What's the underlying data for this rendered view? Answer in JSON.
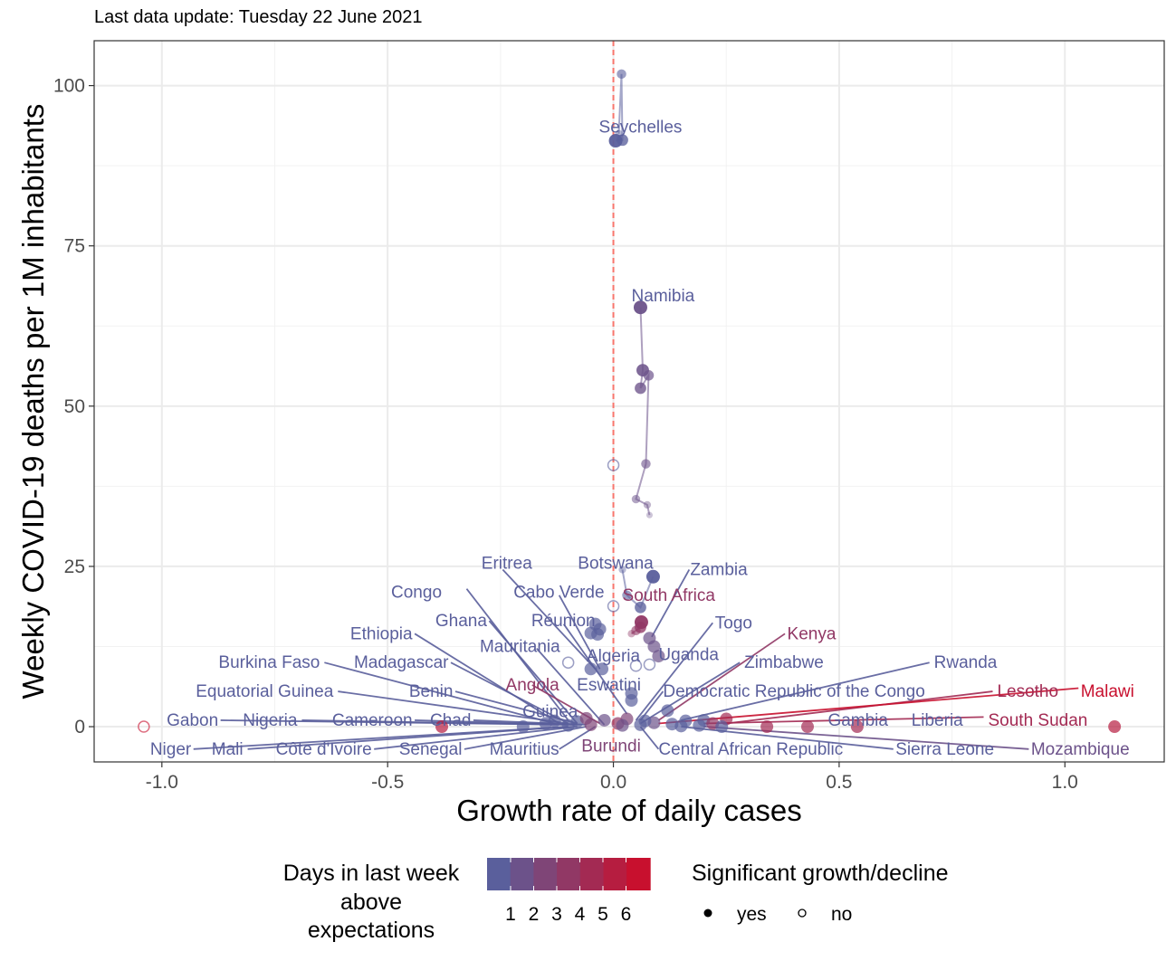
{
  "chart_data": {
    "type": "scatter",
    "subtitle": "Last data update: Tuesday 22 June 2021",
    "xlabel": "Growth rate of daily cases",
    "ylabel": "Weekly COVID-19 deaths per 1M inhabitants",
    "xlim": [
      -1.15,
      1.22
    ],
    "ylim": [
      -5.5,
      107
    ],
    "x_ticks": [
      -1.0,
      -0.5,
      0.0,
      0.5,
      1.0
    ],
    "x_tick_labels": [
      "-1.0",
      "-0.5",
      "0.0",
      "0.5",
      "1.0"
    ],
    "y_ticks": [
      0,
      25,
      50,
      75,
      100
    ],
    "y_tick_labels": [
      "0",
      "25",
      "50",
      "75",
      "100"
    ],
    "grid": true,
    "reference_line_x": 0,
    "colors": {
      "low": "#5a5f9c",
      "high": "#c8102e",
      "refline": "#f8766d",
      "grid": "#ebebeb"
    },
    "legend": {
      "position": "bottom",
      "color_title": [
        "Days in last week",
        "above",
        "expectations"
      ],
      "color_labels": [
        "1",
        "2",
        "3",
        "4",
        "5",
        "6"
      ],
      "shape_title": "Significant growth/decline",
      "shape_labels": [
        "yes",
        "no"
      ]
    },
    "trails": [
      {
        "name": "Seychelles",
        "days": 0,
        "points": [
          [
            0.012,
            92.5
          ],
          [
            0.018,
            101.8
          ],
          [
            0.02,
            91.5
          ],
          [
            0.005,
            91.4
          ]
        ]
      },
      {
        "name": "Namibia",
        "days": 1,
        "points": [
          [
            0.08,
            33
          ],
          [
            0.075,
            34.6
          ],
          [
            0.05,
            35.5
          ],
          [
            0.072,
            41
          ],
          [
            0.078,
            54.8
          ],
          [
            0.06,
            52.8
          ],
          [
            0.065,
            55.6
          ],
          [
            0.06,
            65.4
          ]
        ]
      },
      {
        "name": "Botswana",
        "days": 0,
        "points": [
          [
            0.02,
            24.5
          ],
          [
            0.03,
            20.5
          ],
          [
            0.06,
            18.6
          ],
          [
            0.088,
            23.4
          ]
        ]
      },
      {
        "name": "South Africa",
        "days": 3,
        "points": [
          [
            0.04,
            14.5
          ],
          [
            0.05,
            15
          ],
          [
            0.06,
            15.5
          ],
          [
            0.062,
            16.3
          ]
        ]
      }
    ],
    "points": [
      [
        0.0,
        40.8,
        0,
        0
      ],
      [
        0.0,
        18.8,
        0,
        0
      ],
      [
        -0.1,
        10,
        0,
        0
      ],
      [
        0.05,
        9.5,
        0,
        0
      ],
      [
        0.08,
        9.7,
        0,
        0
      ],
      [
        -0.04,
        16,
        0,
        1
      ],
      [
        -0.03,
        15.2,
        0,
        1
      ],
      [
        -0.05,
        14.6,
        0,
        1
      ],
      [
        -0.035,
        14.4,
        0,
        1
      ],
      [
        -0.05,
        9,
        0,
        1
      ],
      [
        -0.025,
        9,
        0,
        1
      ],
      [
        0.08,
        13.8,
        1,
        1
      ],
      [
        0.09,
        12.5,
        1,
        1
      ],
      [
        0.1,
        11,
        1,
        1
      ],
      [
        0.04,
        5.2,
        0,
        1
      ],
      [
        0.04,
        4.1,
        0,
        1
      ],
      [
        0.12,
        2.5,
        0,
        1
      ],
      [
        0.2,
        1,
        0,
        1
      ],
      [
        0.25,
        1.2,
        4,
        1
      ],
      [
        0.34,
        0,
        4,
        1
      ],
      [
        0.43,
        0,
        4,
        1
      ],
      [
        0.54,
        0,
        4,
        1
      ],
      [
        1.11,
        0,
        5,
        1
      ],
      [
        -0.38,
        0,
        5,
        1
      ],
      [
        -1.04,
        0,
        6,
        0
      ],
      [
        -0.2,
        0,
        0,
        1
      ],
      [
        -0.15,
        0.5,
        0,
        1
      ],
      [
        -0.1,
        0.2,
        0,
        1
      ],
      [
        -0.08,
        0.8,
        0,
        1
      ],
      [
        -0.05,
        0.3,
        2,
        1
      ],
      [
        -0.02,
        1,
        1,
        1
      ],
      [
        0.01,
        0.5,
        3,
        1
      ],
      [
        0.03,
        1.2,
        2,
        1
      ],
      [
        0.06,
        0.3,
        0,
        1
      ],
      [
        0.09,
        0.6,
        1,
        1
      ],
      [
        0.13,
        0.4,
        0,
        1
      ],
      [
        0.16,
        0.9,
        0,
        1
      ],
      [
        0.19,
        0.2,
        0,
        1
      ],
      [
        0.22,
        0.5,
        3,
        1
      ],
      [
        0.24,
        0,
        0,
        1
      ],
      [
        -0.13,
        0.9,
        0,
        1
      ],
      [
        -0.06,
        1.3,
        2,
        1
      ],
      [
        0.02,
        0.2,
        1,
        1
      ],
      [
        0.07,
        0.9,
        0,
        1
      ],
      [
        0.15,
        0.1,
        0,
        1
      ]
    ],
    "labels": [
      {
        "text": "Seychelles",
        "days": 0,
        "x": 0.06,
        "y": 93.5,
        "anchor": "middle"
      },
      {
        "text": "Namibia",
        "days": 0,
        "x": 0.11,
        "y": 67.2,
        "anchor": "middle"
      },
      {
        "text": "Eritrea",
        "days": 0,
        "x": -0.18,
        "y": 25.5,
        "anchor": "end",
        "lx": -0.245,
        "ly": 24.5,
        "px": -0.04,
        "py": 9
      },
      {
        "text": "Botswana",
        "days": 0,
        "x": 0.005,
        "y": 25.5,
        "anchor": "middle"
      },
      {
        "text": "Zambia",
        "days": 0,
        "x": 0.17,
        "y": 24.5,
        "anchor": "start",
        "lx": 0.168,
        "ly": 24.5,
        "px": 0.085,
        "py": 14
      },
      {
        "text": "Congo",
        "days": 0,
        "x": -0.38,
        "y": 21,
        "anchor": "end",
        "lx": -0.325,
        "ly": 21.5,
        "px": -0.1,
        "py": 1
      },
      {
        "text": "Cabo Verde",
        "days": 0,
        "x": -0.02,
        "y": 21,
        "anchor": "end",
        "lx": -0.12,
        "ly": 20.5,
        "px": -0.03,
        "py": 9
      },
      {
        "text": "South Africa",
        "days": 3,
        "x": 0.02,
        "y": 20.5,
        "anchor": "start"
      },
      {
        "text": "Ghana",
        "days": 0,
        "x": -0.28,
        "y": 16.5,
        "anchor": "end",
        "lx": -0.275,
        "ly": 16.5,
        "px": -0.08,
        "py": 0.5
      },
      {
        "text": "Réunion",
        "days": 0,
        "x": -0.04,
        "y": 16.5,
        "anchor": "end",
        "lx": -0.11,
        "ly": 16,
        "px": 0.03,
        "py": 2
      },
      {
        "text": "Togo",
        "days": 0,
        "x": 0.225,
        "y": 16.2,
        "anchor": "start",
        "lx": 0.22,
        "ly": 16.2,
        "px": 0.05,
        "py": 1
      },
      {
        "text": "Ethiopia",
        "days": 0,
        "x": -0.445,
        "y": 14.5,
        "anchor": "end",
        "lx": -0.44,
        "ly": 14.5,
        "px": -0.12,
        "py": 0.5
      },
      {
        "text": "Kenya",
        "days": 3,
        "x": 0.385,
        "y": 14.5,
        "anchor": "start",
        "lx": 0.38,
        "ly": 14.5,
        "px": 0.1,
        "py": 1
      },
      {
        "text": "Mauritania",
        "days": 0,
        "x": -0.118,
        "y": 12.5,
        "anchor": "end",
        "lx": -0.17,
        "ly": 12.2,
        "px": -0.02,
        "py": 0.3
      },
      {
        "text": "Algeria",
        "days": 0,
        "x": 0.0,
        "y": 11,
        "anchor": "middle"
      },
      {
        "text": "Uganda",
        "days": 0,
        "x": 0.1,
        "y": 11.2,
        "anchor": "start"
      },
      {
        "text": "Burkina Faso",
        "days": 0,
        "x": -0.65,
        "y": 10,
        "anchor": "end",
        "lx": -0.64,
        "ly": 10,
        "px": -0.13,
        "py": 0.5
      },
      {
        "text": "Madagascar",
        "days": 0,
        "x": -0.365,
        "y": 10,
        "anchor": "end",
        "lx": -0.36,
        "ly": 10,
        "px": -0.1,
        "py": 0.5
      },
      {
        "text": "Zimbabwe",
        "days": 0,
        "x": 0.29,
        "y": 10,
        "anchor": "start",
        "lx": 0.28,
        "ly": 10,
        "px": 0.06,
        "py": 0.5
      },
      {
        "text": "Rwanda",
        "days": 0,
        "x": 0.71,
        "y": 10,
        "anchor": "start",
        "lx": 0.7,
        "ly": 10,
        "px": 0.15,
        "py": 1
      },
      {
        "text": "Angola",
        "days": 3,
        "x": -0.12,
        "y": 6.5,
        "anchor": "end",
        "lx": -0.18,
        "ly": 6.5,
        "px": -0.03,
        "py": 0.5
      },
      {
        "text": "Eswatini",
        "days": 0,
        "x": -0.01,
        "y": 6.5,
        "anchor": "middle"
      },
      {
        "text": "Equatorial Guinea",
        "days": 0,
        "x": -0.62,
        "y": 5.5,
        "anchor": "end",
        "lx": -0.61,
        "ly": 5.5,
        "px": -0.1,
        "py": 0.5
      },
      {
        "text": "Benin",
        "days": 0,
        "x": -0.355,
        "y": 5.5,
        "anchor": "end",
        "lx": -0.35,
        "ly": 5.5,
        "px": -0.08,
        "py": 0.5
      },
      {
        "text": "Democratic Republic of the Congo",
        "days": 0,
        "x": 0.11,
        "y": 5.5,
        "anchor": "start",
        "lx": 0.11,
        "ly": 5.5,
        "px": 0.06,
        "py": 1
      },
      {
        "text": "Lesotho",
        "days": 4,
        "x": 0.85,
        "y": 5.5,
        "anchor": "start",
        "lx": 0.84,
        "ly": 5.5,
        "px": 0.25,
        "py": 0.5
      },
      {
        "text": "Malawi",
        "days": 6,
        "x": 1.035,
        "y": 5.5,
        "anchor": "start",
        "lx": 1.03,
        "ly": 6,
        "px": 0.1,
        "py": 0.5
      },
      {
        "text": "Guinea",
        "days": 0,
        "x": -0.14,
        "y": 2.3,
        "anchor": "middle"
      },
      {
        "text": "Gabon",
        "days": 0,
        "x": -0.875,
        "y": 1,
        "anchor": "end",
        "lx": -0.87,
        "ly": 1,
        "px": -0.1,
        "py": 0.3
      },
      {
        "text": "Nigeria",
        "days": 0,
        "x": -0.7,
        "y": 1,
        "anchor": "end",
        "lx": -0.69,
        "ly": 1,
        "px": -0.1,
        "py": 0.3
      },
      {
        "text": "Cameroon",
        "days": 0,
        "x": -0.445,
        "y": 1,
        "anchor": "end",
        "lx": -0.44,
        "ly": 1,
        "px": -0.08,
        "py": 0.3
      },
      {
        "text": "Chad",
        "days": 0,
        "x": -0.315,
        "y": 1,
        "anchor": "end",
        "lx": -0.31,
        "ly": 1,
        "px": -0.06,
        "py": 0.3
      },
      {
        "text": "Gambia",
        "days": 0,
        "x": 0.475,
        "y": 1,
        "anchor": "start"
      },
      {
        "text": "Liberia",
        "days": 0,
        "x": 0.66,
        "y": 1,
        "anchor": "start"
      },
      {
        "text": "South Sudan",
        "days": 4,
        "x": 0.83,
        "y": 1,
        "anchor": "start",
        "lx": 0.82,
        "ly": 1.5,
        "px": 0.2,
        "py": 0.5
      },
      {
        "text": "Niger",
        "days": 0,
        "x": -0.935,
        "y": -3.5,
        "anchor": "end",
        "lx": -0.93,
        "ly": -3.5,
        "px": -0.1,
        "py": 0
      },
      {
        "text": "Mali",
        "days": 0,
        "x": -0.82,
        "y": -3.5,
        "anchor": "end",
        "lx": -0.81,
        "ly": -3.5,
        "px": -0.1,
        "py": 0
      },
      {
        "text": "Côte d'Ivoire",
        "days": 0,
        "x": -0.535,
        "y": -3.5,
        "anchor": "end",
        "lx": -0.53,
        "ly": -3.5,
        "px": -0.08,
        "py": 0
      },
      {
        "text": "Senegal",
        "days": 0,
        "x": -0.335,
        "y": -3.5,
        "anchor": "end",
        "lx": -0.33,
        "ly": -3.5,
        "px": -0.06,
        "py": 0
      },
      {
        "text": "Mauritius",
        "days": 0,
        "x": -0.12,
        "y": -3.5,
        "anchor": "end",
        "lx": -0.12,
        "ly": -3.5,
        "px": -0.04,
        "py": 0
      },
      {
        "text": "Burundi",
        "days": 2,
        "x": -0.005,
        "y": -3,
        "anchor": "middle"
      },
      {
        "text": "Central African Republic",
        "days": 0,
        "x": 0.1,
        "y": -3.5,
        "anchor": "start",
        "lx": 0.1,
        "ly": -3.5,
        "px": 0.06,
        "py": 0
      },
      {
        "text": "Sierra Leone",
        "days": 0,
        "x": 0.625,
        "y": -3.5,
        "anchor": "start",
        "lx": 0.62,
        "ly": -3.5,
        "px": 0.15,
        "py": 0
      },
      {
        "text": "Mozambique",
        "days": 1,
        "x": 0.925,
        "y": -3.5,
        "anchor": "start",
        "lx": 0.92,
        "ly": -3.5,
        "px": 0.2,
        "py": 0
      }
    ]
  }
}
